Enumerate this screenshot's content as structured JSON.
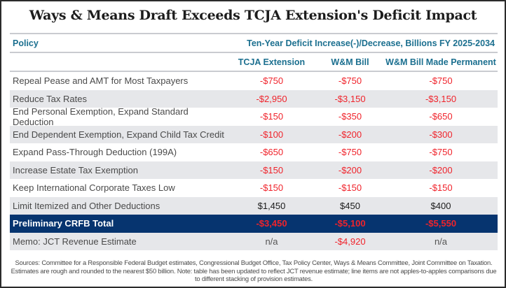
{
  "title": "Ways & Means Draft Exceeds TCJA Extension's Deficit Impact",
  "header": {
    "policy_label": "Policy",
    "span_label": "Ten-Year Deficit Increase(-)/Decrease, Billions FY 2025-2034",
    "columns": [
      "TCJA Extension",
      "W&M Bill",
      "W&M Bill Made Permanent"
    ]
  },
  "colors": {
    "header_text": "#1b6f8f",
    "negative": "#f0232b",
    "total_row_bg": "#06346f",
    "alt_row_bg": "#e6e7ea"
  },
  "chart_data": {
    "type": "table",
    "title": "Ways & Means Draft Exceeds TCJA Extension's Deficit Impact",
    "columns": [
      "Policy",
      "TCJA Extension",
      "W&M Bill",
      "W&M Bill Made Permanent"
    ],
    "unit": "Billions of dollars, FY 2025-2034; deficit increase (-) / decrease",
    "rows": [
      {
        "policy": "Repeal Pease and AMT for Most Taxpayers",
        "values": [
          "-$750",
          "-$750",
          "-$750"
        ],
        "tone": [
          "neg",
          "neg",
          "neg"
        ]
      },
      {
        "policy": "Reduce Tax Rates",
        "values": [
          "-$2,950",
          "-$3,150",
          "-$3,150"
        ],
        "tone": [
          "neg",
          "neg",
          "neg"
        ]
      },
      {
        "policy": "End Personal Exemption, Expand Standard Deduction",
        "values": [
          "-$150",
          "-$350",
          "-$650"
        ],
        "tone": [
          "neg",
          "neg",
          "neg"
        ]
      },
      {
        "policy": "End Dependent Exemption, Expand Child Tax Credit",
        "values": [
          "-$100",
          "-$200",
          "-$300"
        ],
        "tone": [
          "neg",
          "neg",
          "neg"
        ]
      },
      {
        "policy": "Expand Pass-Through Deduction (199A)",
        "values": [
          "-$650",
          "-$750",
          "-$750"
        ],
        "tone": [
          "neg",
          "neg",
          "neg"
        ]
      },
      {
        "policy": "Increase Estate Tax Exemption",
        "values": [
          "-$150",
          "-$200",
          "-$200"
        ],
        "tone": [
          "neg",
          "neg",
          "neg"
        ]
      },
      {
        "policy": "Keep International Corporate Taxes Low",
        "values": [
          "-$150",
          "-$150",
          "-$150"
        ],
        "tone": [
          "neg",
          "neg",
          "neg"
        ]
      },
      {
        "policy": "Limit Itemized and Other Deductions",
        "values": [
          "$1,450",
          "$450",
          "$400"
        ],
        "tone": [
          "pos",
          "pos",
          "pos"
        ]
      },
      {
        "policy": "Preliminary CRFB Total",
        "values": [
          "-$3,450",
          "-$5,100",
          "-$5,550"
        ],
        "tone": [
          "neg",
          "neg",
          "neg"
        ],
        "total": true
      },
      {
        "policy": "Memo: JCT Revenue Estimate",
        "values": [
          "n/a",
          "-$4,920",
          "n/a"
        ],
        "tone": [
          "na",
          "neg",
          "na"
        ]
      }
    ]
  },
  "notes": "Sources: Committee for a Responsible Federal Budget estimates, Congressional Budget Office, Tax Policy Center, Ways & Means Committee, Joint Committee on Taxation. Estimates are rough and rounded to the nearest $50 billion. Note: table has been updated to reflect JCT revenue estimate; line items are not apples-to-apples comparisons due to different stacking of provision estimates."
}
